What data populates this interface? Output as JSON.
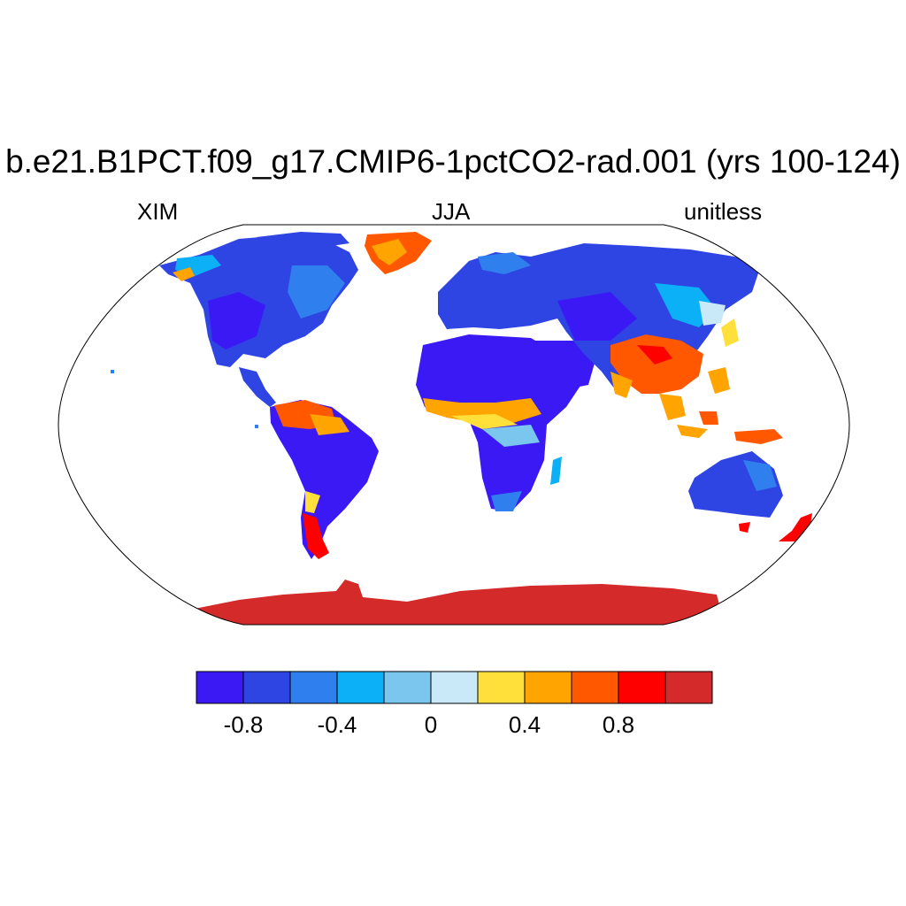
{
  "title": "b.e21.B1PCT.f09_g17.CMIP6-1pctCO2-rad.001 (yrs 100-124)",
  "left_label": "XIM",
  "center_label": "JJA",
  "right_label": "unitless",
  "colorbar": {
    "colors": [
      "#3b19f5",
      "#2e45e3",
      "#2f80ee",
      "#0bb0f7",
      "#7ac6ee",
      "#c9e8f8",
      "#ffe03a",
      "#ffa400",
      "#ff5800",
      "#ff0000",
      "#d42a2a"
    ],
    "tick_labels": [
      "-0.8",
      "-0.4",
      "0",
      "0.4",
      "0.8"
    ]
  },
  "regions": [
    {
      "name": "Antarctica",
      "color": "#d42a2a"
    },
    {
      "name": "Greenland",
      "color": "#ff5800"
    },
    {
      "name": "Sahara and Arabia",
      "color": "#3b19f5"
    },
    {
      "name": "Sahel",
      "color": "#ffa400"
    },
    {
      "name": "Northern South America",
      "color": "#ff5800"
    },
    {
      "name": "Patagonia",
      "color": "#ff0000"
    },
    {
      "name": "South and Southeast Asia",
      "color": "#ff5800"
    },
    {
      "name": "Australia",
      "color": "#2e45e3"
    },
    {
      "name": "New Zealand",
      "color": "#ff0000"
    }
  ]
}
